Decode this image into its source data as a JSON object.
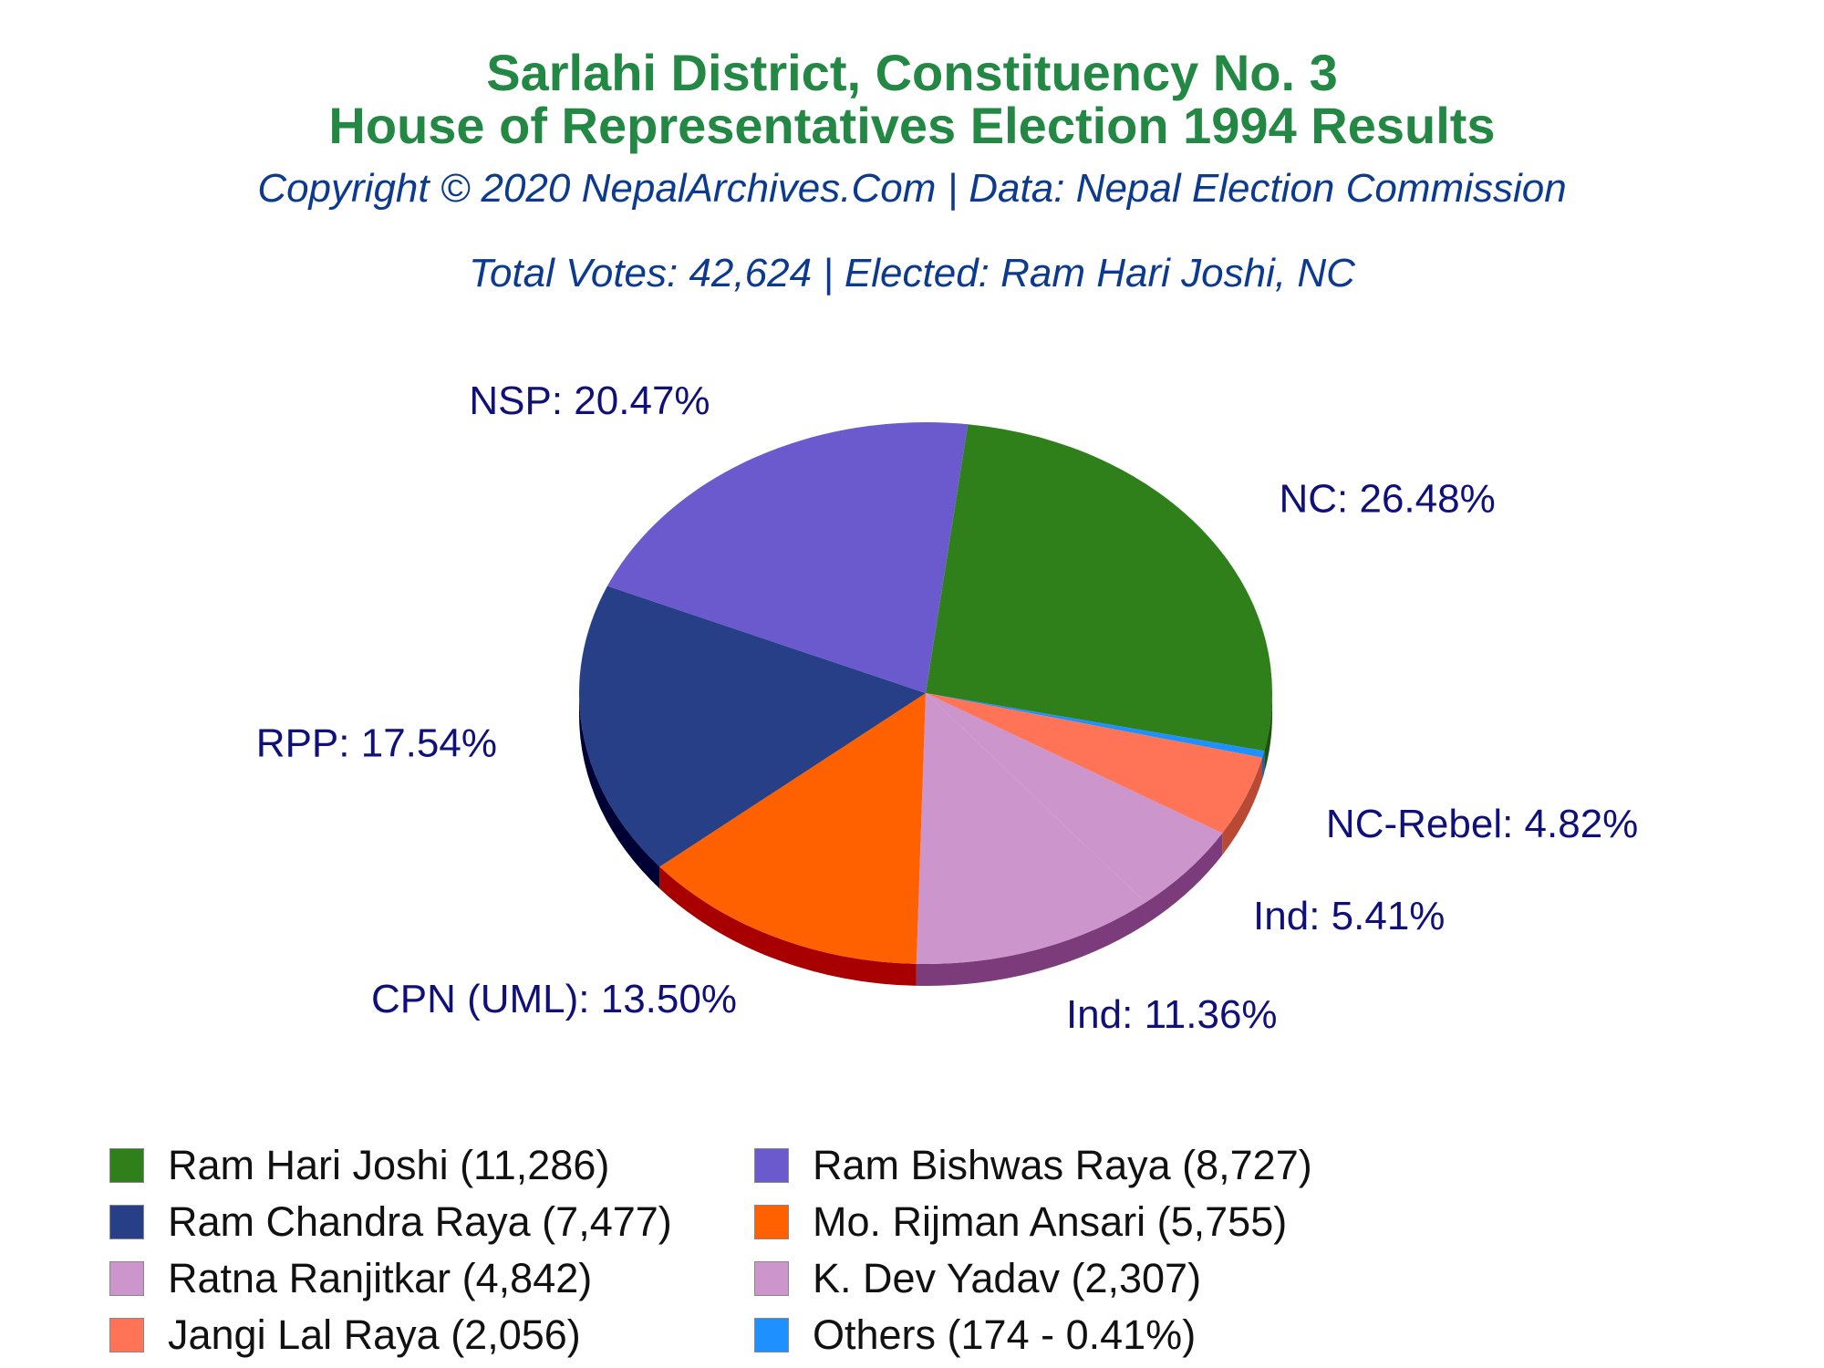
{
  "header": {
    "title_line1": "Sarlahi District, Constituency No. 3",
    "title_line2": "House of Representatives Election 1994 Results",
    "copyright": "Copyright © 2020 NepalArchives.Com | Data: Nepal Election Commission",
    "summary": "Total Votes: 42,624 | Elected: Ram Hari Joshi, NC"
  },
  "chart_data": {
    "type": "pie",
    "title": "Sarlahi District, Constituency No. 3 House of Representatives Election 1994 Results",
    "slices": [
      {
        "candidate": "Ram Hari Joshi",
        "votes": 11286,
        "percent": 26.48,
        "label": "NC: 26.48%",
        "color": "#2f7f1a",
        "side_color": "#1c5210"
      },
      {
        "candidate": "Others",
        "votes": 174,
        "percent": 0.41,
        "label": "",
        "color": "#1e90ff",
        "side_color": "#1062b8"
      },
      {
        "candidate": "Jangi Lal Raya",
        "votes": 2056,
        "percent": 4.82,
        "label": "NC-Rebel: 4.82%",
        "color": "#ff7357",
        "side_color": "#b84a35"
      },
      {
        "candidate": "K. Dev Yadav",
        "votes": 2307,
        "percent": 5.41,
        "label": "Ind: 5.41%",
        "color": "#cc95cc",
        "side_color": "#7c3c7c"
      },
      {
        "candidate": "Ratna Ranjitkar",
        "votes": 4842,
        "percent": 11.36,
        "label": "Ind: 11.36%",
        "color": "#cc95cc",
        "side_color": "#7c3c7c"
      },
      {
        "candidate": "Mo. Rijman Ansari",
        "votes": 5755,
        "percent": 13.5,
        "label": "CPN (UML): 13.50%",
        "color": "#ff6000",
        "side_color": "#a80000"
      },
      {
        "candidate": "Ram Chandra Raya",
        "votes": 7477,
        "percent": 17.54,
        "label": "RPP: 17.54%",
        "color": "#263f87",
        "side_color": "#000033"
      },
      {
        "candidate": "Ram Bishwas Raya",
        "votes": 8727,
        "percent": 20.47,
        "label": "NSP: 20.47%",
        "color": "#6a5acd",
        "side_color": "#1a0a7d"
      }
    ]
  },
  "legend": {
    "items": [
      {
        "text": "Ram Hari Joshi (11,286)",
        "color": "#2f7f1a"
      },
      {
        "text": "Ram Bishwas Raya (8,727)",
        "color": "#6a5acd"
      },
      {
        "text": "Ram Chandra Raya (7,477)",
        "color": "#263f87"
      },
      {
        "text": "Mo. Rijman Ansari (5,755)",
        "color": "#ff6000"
      },
      {
        "text": "Ratna Ranjitkar (4,842)",
        "color": "#cc95cc"
      },
      {
        "text": "K. Dev Yadav (2,307)",
        "color": "#cc95cc"
      },
      {
        "text": "Jangi Lal Raya (2,056)",
        "color": "#ff7357"
      },
      {
        "text": "Others (174 - 0.41%)",
        "color": "#1e90ff"
      }
    ]
  }
}
